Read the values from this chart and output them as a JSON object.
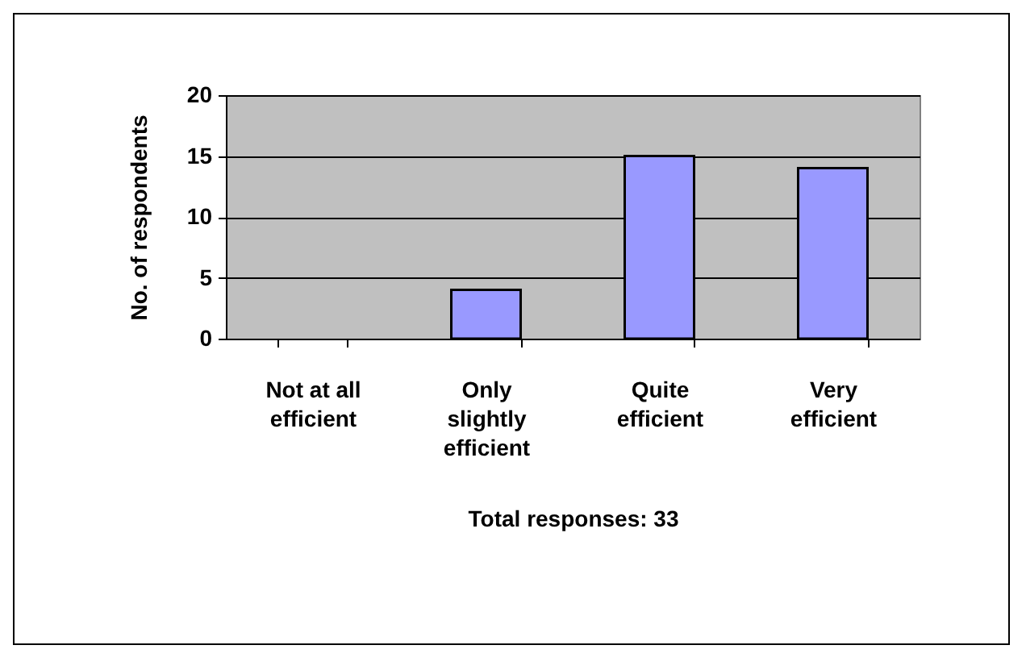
{
  "chart_data": {
    "type": "bar",
    "xlabel": "Total responses: 33",
    "ylabel": "No. of respondents",
    "categories": [
      "Not at all efficient",
      "Only slightly efficient",
      "Quite efficient",
      "Very efficient"
    ],
    "values": [
      0,
      4,
      15,
      14
    ],
    "color": "#9999ff",
    "ylim": [
      0,
      20
    ],
    "yticks": [
      0,
      5,
      10,
      15,
      20
    ],
    "grid": "y"
  }
}
